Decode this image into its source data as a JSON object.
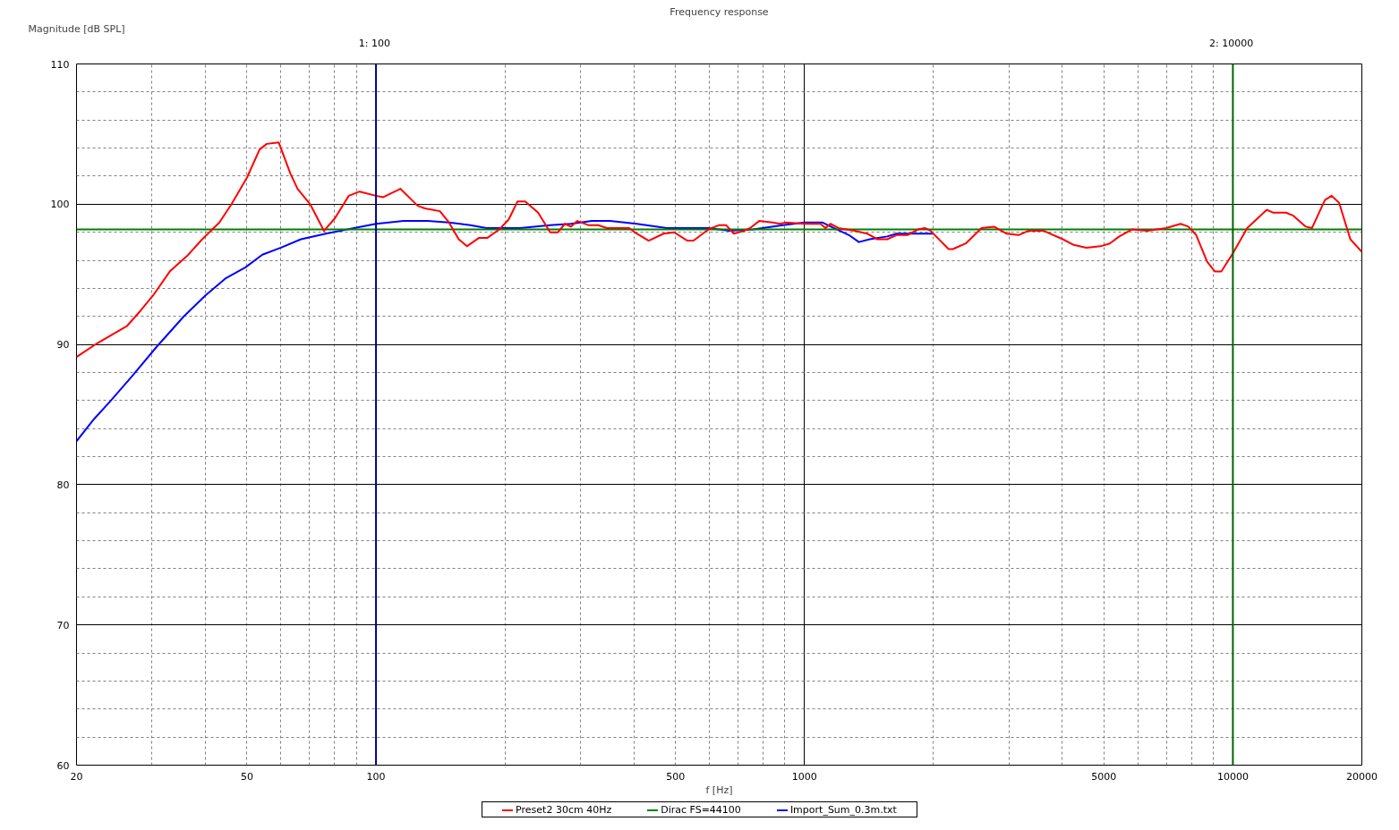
{
  "chart_data": {
    "type": "line",
    "title": "Frequency response",
    "xlabel": "f [Hz]",
    "ylabel": "Magnitude [dB SPL]",
    "log": "x",
    "xlim": [
      20,
      20000
    ],
    "ylim": [
      60,
      110
    ],
    "xticks": [
      20,
      50,
      100,
      500,
      1000,
      5000,
      10000,
      20000
    ],
    "yticks": [
      60,
      70,
      80,
      90,
      100,
      110
    ],
    "grid": true,
    "legend": "bottom",
    "series": [
      {
        "name": "Preset2 30cm 40Hz",
        "color": "#ff0000",
        "x": [
          20,
          22.4,
          26.2,
          28.2,
          30.2,
          33,
          36.2,
          39.3,
          43.1,
          46,
          50,
          53.5,
          55.6,
          59.3,
          63.1,
          65.6,
          70.2,
          75.6,
          80.2,
          86.4,
          91.6,
          100,
          104,
          114,
          125,
          130,
          141,
          148,
          156,
          163,
          174,
          182,
          194,
          204,
          214,
          223,
          239,
          255,
          266,
          276,
          285,
          295,
          314,
          330,
          346,
          390,
          406,
          433,
          469,
          496,
          533,
          551,
          597,
          631,
          657,
          684,
          723,
          747,
          784,
          843,
          877,
          905,
          1000,
          1090,
          1120,
          1150,
          1200,
          1310,
          1400,
          1480,
          1560,
          1640,
          1740,
          1840,
          1910,
          1970,
          2170,
          2220,
          2380,
          2590,
          2770,
          2960,
          3160,
          3330,
          3620,
          4010,
          4250,
          4550,
          4910,
          5160,
          5430,
          5810,
          6320,
          6990,
          7550,
          7870,
          8210,
          8710,
          9080,
          9400,
          10000,
          10800,
          12000,
          12400,
          13300,
          13800,
          14800,
          15300,
          16400,
          17000,
          17700,
          18800,
          20000
        ],
        "values": [
          89.1,
          90.1,
          91.3,
          92.4,
          93.5,
          95.2,
          96.3,
          97.5,
          98.7,
          100.0,
          101.9,
          103.9,
          104.3,
          104.4,
          102.2,
          101.1,
          100.0,
          98.1,
          99.0,
          100.6,
          100.9,
          100.6,
          100.5,
          101.1,
          99.9,
          99.7,
          99.5,
          98.7,
          97.5,
          97.0,
          97.6,
          97.6,
          98.2,
          98.9,
          100.2,
          100.2,
          99.4,
          98.0,
          98.0,
          98.6,
          98.4,
          98.8,
          98.5,
          98.5,
          98.3,
          98.3,
          97.9,
          97.4,
          97.9,
          98.0,
          97.4,
          97.4,
          98.2,
          98.5,
          98.5,
          97.9,
          98.1,
          98.3,
          98.8,
          98.7,
          98.6,
          98.7,
          98.6,
          98.6,
          98.3,
          98.6,
          98.3,
          98.1,
          97.9,
          97.5,
          97.5,
          97.8,
          97.8,
          98.2,
          98.3,
          98.1,
          96.8,
          96.8,
          97.2,
          98.3,
          98.4,
          97.9,
          97.8,
          98.1,
          98.1,
          97.5,
          97.1,
          96.9,
          97.0,
          97.2,
          97.7,
          98.2,
          98.1,
          98.3,
          98.6,
          98.4,
          97.8,
          95.9,
          95.2,
          95.2,
          96.5,
          98.3,
          99.6,
          99.4,
          99.4,
          99.2,
          98.4,
          98.3,
          100.3,
          100.6,
          100.1,
          97.5,
          96.6
        ]
      },
      {
        "name": "Dirac FS=44100",
        "color": "#008000",
        "x": [
          20,
          20000
        ],
        "values": [
          98.2,
          98.2
        ]
      },
      {
        "name": "Import_Sum_0.3m.txt",
        "color": "#0000ff",
        "x": [
          20,
          22,
          23.9,
          26.9,
          30.7,
          35.6,
          40,
          44.5,
          49.6,
          54.3,
          60,
          66.8,
          76.4,
          85.7,
          100,
          116,
          132,
          148,
          166,
          181,
          217,
          255,
          285,
          319,
          352,
          406,
          477,
          597,
          668,
          759,
          891,
          1000,
          1100,
          1170,
          1270,
          1340,
          1420,
          1560,
          1640,
          2000
        ],
        "values": [
          83.1,
          84.7,
          85.9,
          87.7,
          89.8,
          92.0,
          93.5,
          94.7,
          95.5,
          96.4,
          96.9,
          97.5,
          97.9,
          98.2,
          98.6,
          98.8,
          98.8,
          98.7,
          98.5,
          98.3,
          98.3,
          98.5,
          98.6,
          98.8,
          98.8,
          98.6,
          98.3,
          98.3,
          98.1,
          98.2,
          98.5,
          98.7,
          98.7,
          98.3,
          97.8,
          97.3,
          97.5,
          97.7,
          97.9,
          97.9
        ]
      }
    ],
    "ref_lines": [
      {
        "axis": "x",
        "value": 100,
        "label": "1:  100",
        "color": "#00008b"
      },
      {
        "axis": "x",
        "value": 10000,
        "label": "2:  10000",
        "color": "#006400"
      }
    ]
  }
}
